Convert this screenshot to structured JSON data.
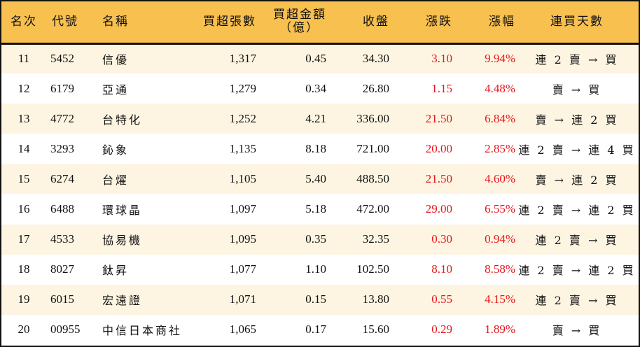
{
  "headers": {
    "rank": "名次",
    "code": "代號",
    "name": "名稱",
    "net_buy_lots": "買超張數",
    "net_buy_amount": "買超金額",
    "net_buy_amount_unit": "（億）",
    "close": "收盤",
    "change": "漲跌",
    "change_pct": "漲幅",
    "streak": "連買天數"
  },
  "colors": {
    "header_bg": "#F8C04F",
    "alt_row_bg": "#FDF5E2",
    "up": "#E8141B"
  },
  "rows": [
    {
      "rank": "11",
      "code": "5452",
      "name": "信優",
      "lots": "1,317",
      "amount": "0.45",
      "close": "34.30",
      "change": "3.10",
      "pct": "9.94%",
      "streak": "連 2 賣 → 買"
    },
    {
      "rank": "12",
      "code": "6179",
      "name": "亞通",
      "lots": "1,279",
      "amount": "0.34",
      "close": "26.80",
      "change": "1.15",
      "pct": "4.48%",
      "streak": "賣 → 買"
    },
    {
      "rank": "13",
      "code": "4772",
      "name": "台特化",
      "lots": "1,252",
      "amount": "4.21",
      "close": "336.00",
      "change": "21.50",
      "pct": "6.84%",
      "streak": "賣 → 連 2 買"
    },
    {
      "rank": "14",
      "code": "3293",
      "name": "鈊象",
      "lots": "1,135",
      "amount": "8.18",
      "close": "721.00",
      "change": "20.00",
      "pct": "2.85%",
      "streak": "連 2 賣 → 連 4 買"
    },
    {
      "rank": "15",
      "code": "6274",
      "name": "台燿",
      "lots": "1,105",
      "amount": "5.40",
      "close": "488.50",
      "change": "21.50",
      "pct": "4.60%",
      "streak": "賣 → 連 2 買"
    },
    {
      "rank": "16",
      "code": "6488",
      "name": "環球晶",
      "lots": "1,097",
      "amount": "5.18",
      "close": "472.00",
      "change": "29.00",
      "pct": "6.55%",
      "streak": "連 2 賣 → 連 2 買"
    },
    {
      "rank": "17",
      "code": "4533",
      "name": "協易機",
      "lots": "1,095",
      "amount": "0.35",
      "close": "32.35",
      "change": "0.30",
      "pct": "0.94%",
      "streak": "連 2 賣 → 買"
    },
    {
      "rank": "18",
      "code": "8027",
      "name": "鈦昇",
      "lots": "1,077",
      "amount": "1.10",
      "close": "102.50",
      "change": "8.10",
      "pct": "8.58%",
      "streak": "連 2 賣 → 連 2 買"
    },
    {
      "rank": "19",
      "code": "6015",
      "name": "宏遠證",
      "lots": "1,071",
      "amount": "0.15",
      "close": "13.80",
      "change": "0.55",
      "pct": "4.15%",
      "streak": "連 2 賣 → 買"
    },
    {
      "rank": "20",
      "code": "00955",
      "name": "中信日本商社",
      "lots": "1,065",
      "amount": "0.17",
      "close": "15.60",
      "change": "0.29",
      "pct": "1.89%",
      "streak": "賣 → 買"
    }
  ]
}
